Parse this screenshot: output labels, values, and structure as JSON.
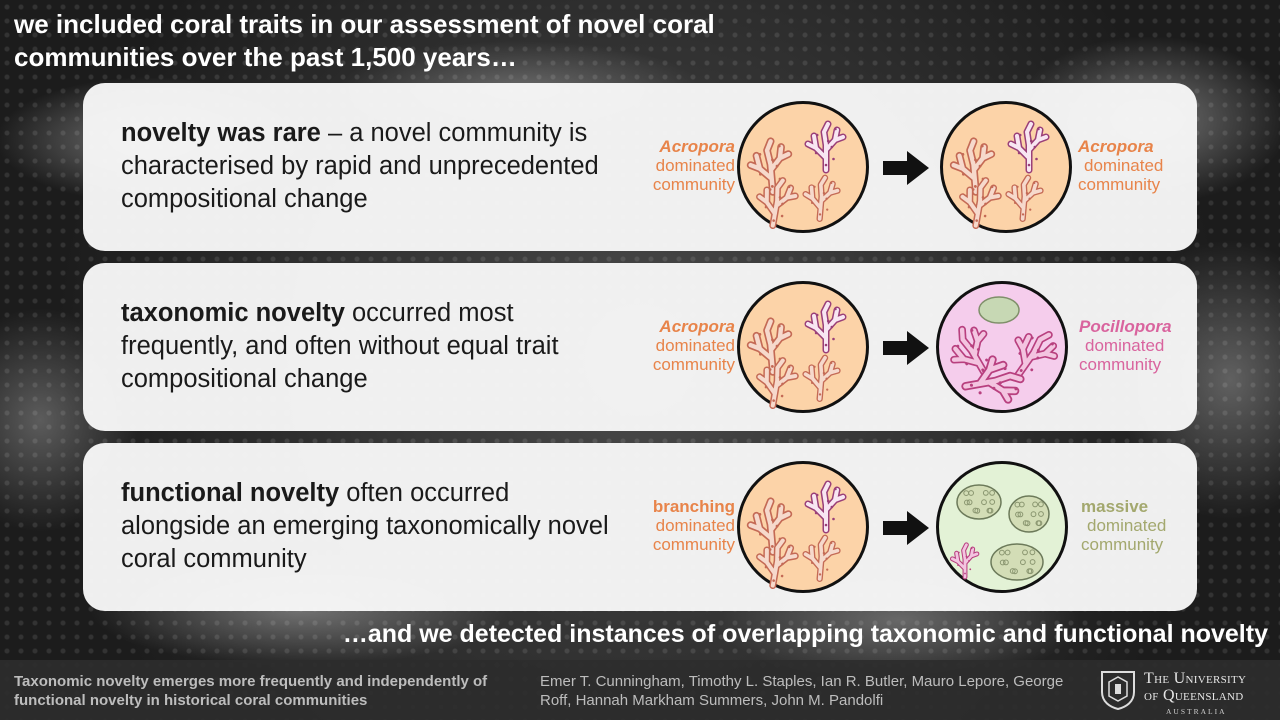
{
  "headline": {
    "line1": "we included coral traits in our assessment of novel coral",
    "line2": "communities over the past 1,500 years…"
  },
  "panels": [
    {
      "bold": "novelty was rare",
      "rest": " – a novel community is characterised by rapid and unprecedented compositional change",
      "left_label": {
        "title": "Acropora",
        "line2": "dominated",
        "line3": "community"
      },
      "right_label": {
        "title": "Acropora",
        "line2": "dominated",
        "line3": "community"
      },
      "left_circle": "acropora-community-icon",
      "right_circle": "acropora-community-icon"
    },
    {
      "bold": "taxonomic novelty",
      "rest": " occurred most frequently, and often without equal trait compositional change",
      "left_label": {
        "title": "Acropora",
        "line2": "dominated",
        "line3": "community"
      },
      "right_label": {
        "title": "Pocillopora",
        "line2": "dominated",
        "line3": "community"
      },
      "left_circle": "acropora-community-icon",
      "right_circle": "pocillopora-community-icon"
    },
    {
      "bold": "functional novelty",
      "rest": " often occurred alongside an emerging taxonomically novel coral community",
      "left_label": {
        "title": "branching",
        "line2": "dominated",
        "line3": "community"
      },
      "right_label": {
        "title": "massive",
        "line2": "dominated",
        "line3": "community"
      },
      "left_circle": "branching-community-icon",
      "right_circle": "massive-community-icon"
    }
  ],
  "conclusion": "…and we detected instances of overlapping taxonomic and functional novelty",
  "footer": {
    "title": "Taxonomic novelty emerges more frequently and independently of functional novelty in historical coral communities",
    "authors": "Emer T. Cunningham, Timothy L. Staples, Ian R. Butler, Mauro Lepore, George Roff, Hannah Markham Summers, John M. Pandolfi",
    "university_line1": "The University",
    "university_line2": "of Queensland",
    "university_line3": "AUSTRALIA"
  },
  "colors": {
    "acropora": "#e8844a",
    "pocillopora": "#d9649e",
    "massive": "#a3a86e",
    "circle_orange": "#fcd3a8",
    "circle_pink": "#f5cdec",
    "circle_green": "#e3f2d6"
  }
}
